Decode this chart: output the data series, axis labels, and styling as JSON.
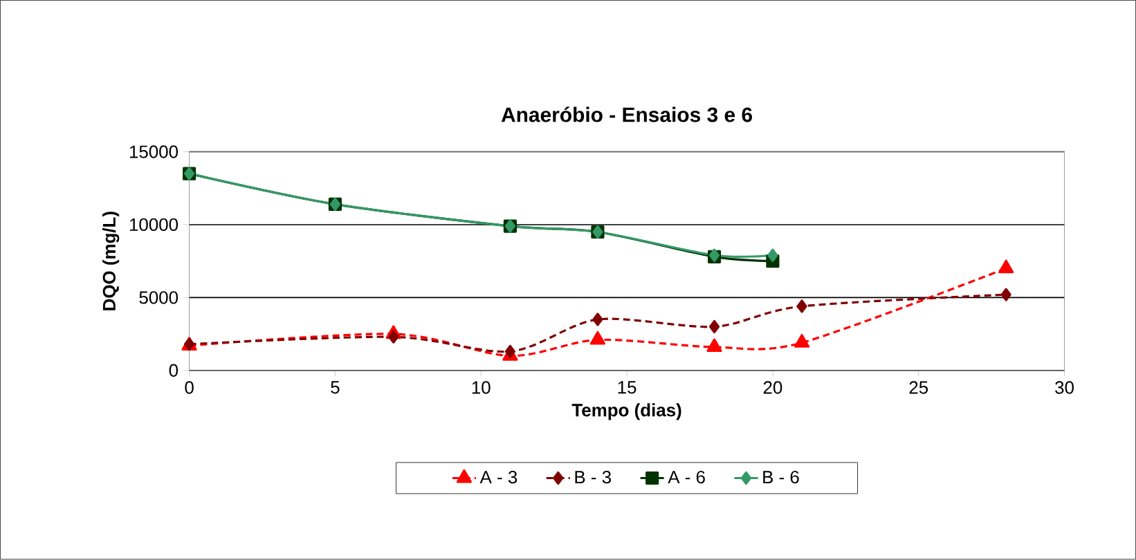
{
  "chart_data": {
    "type": "line",
    "title": "Anaeróbio - Ensaios 3 e 6",
    "xlabel": "Tempo (dias)",
    "ylabel": "DQO (mg/L)",
    "xlim": [
      0,
      30
    ],
    "xticks": [
      0,
      5,
      10,
      15,
      20,
      25,
      30
    ],
    "ylim": [
      0,
      15000
    ],
    "yticks": [
      0,
      5000,
      10000,
      15000
    ],
    "grid": "y",
    "legend": "bottom",
    "series": [
      {
        "name": "A - 3",
        "color": "#ff0000",
        "marker": "triangle",
        "line_style": "dashed",
        "x": [
          0,
          7,
          11,
          14,
          18,
          21,
          28
        ],
        "values": [
          1700,
          2500,
          1000,
          2100,
          1600,
          1900,
          7000
        ]
      },
      {
        "name": "B - 3",
        "color": "#800000",
        "marker": "diamond",
        "line_style": "dashed",
        "x": [
          0,
          7,
          11,
          14,
          18,
          21,
          28
        ],
        "values": [
          1800,
          2300,
          1300,
          3500,
          3000,
          4400,
          5200
        ]
      },
      {
        "name": "A - 6",
        "color": "#003300",
        "marker": "square",
        "line_style": "solid",
        "x": [
          0,
          5,
          11,
          14,
          18,
          20
        ],
        "values": [
          13500,
          11400,
          9900,
          9500,
          7800,
          7500
        ]
      },
      {
        "name": "B - 6",
        "color": "#339966",
        "marker": "diamond",
        "line_style": "solid",
        "x": [
          0,
          5,
          11,
          14,
          18,
          20
        ],
        "values": [
          13500,
          11400,
          9900,
          9500,
          7900,
          7900
        ]
      }
    ]
  }
}
